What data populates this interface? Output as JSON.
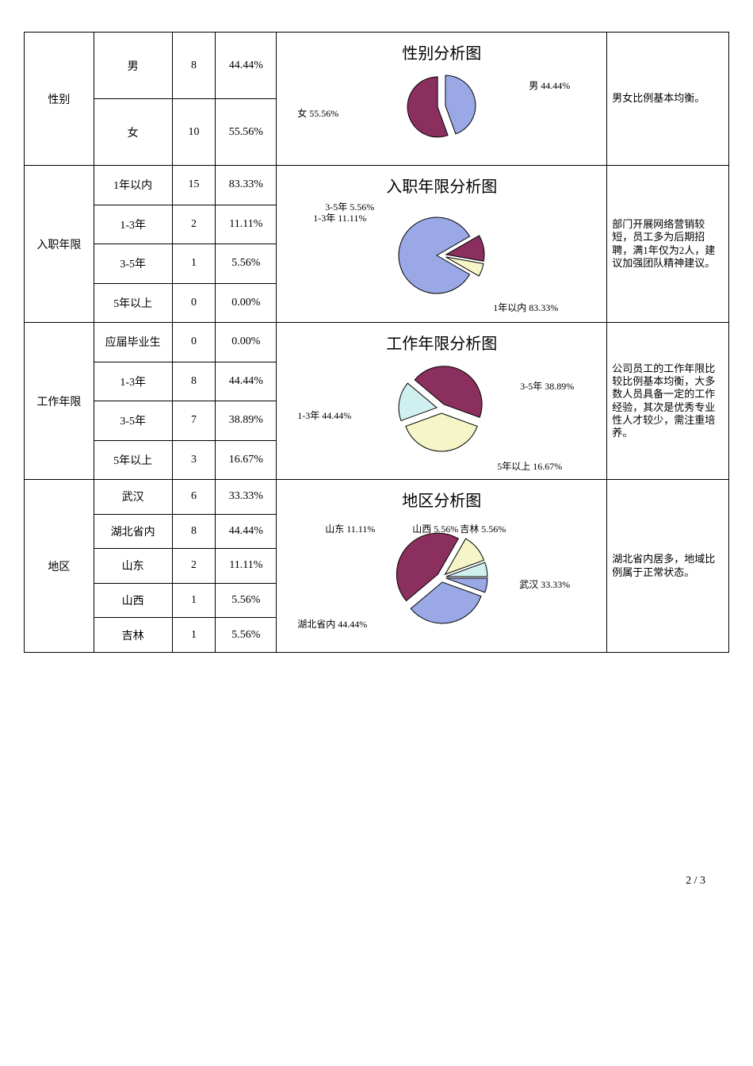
{
  "colors": {
    "purple": "#8b2f5f",
    "blue": "#9aa8e6",
    "cream": "#f5f5c8",
    "cyan": "#d0f0f0",
    "stroke": "#000000"
  },
  "sections": [
    {
      "category": "性别",
      "rows": [
        {
          "label": "男",
          "count": "8",
          "pct": "44.44%"
        },
        {
          "label": "女",
          "count": "10",
          "pct": "55.56%"
        }
      ],
      "chart_title": "性别分析图",
      "note": "男女比例基本均衡。",
      "pie": {
        "slices": [
          {
            "label": "男 44.44%",
            "value": 44.44,
            "color": "#9aa8e6"
          },
          {
            "label": "女 55.56%",
            "value": 55.56,
            "color": "#8b2f5f"
          }
        ]
      }
    },
    {
      "category": "入职年限",
      "rows": [
        {
          "label": "1年以内",
          "count": "15",
          "pct": "83.33%"
        },
        {
          "label": "1-3年",
          "count": "2",
          "pct": "11.11%"
        },
        {
          "label": "3-5年",
          "count": "1",
          "pct": "5.56%"
        },
        {
          "label": "5年以上",
          "count": "0",
          "pct": "0.00%"
        }
      ],
      "chart_title": "入职年限分析图",
      "note": "部门开展网络营销较短，员工多为后期招聘，满1年仅为2人，建议加强团队精神建议。",
      "pie": {
        "slices": [
          {
            "label": "1年以内 83.33%",
            "value": 83.33,
            "color": "#9aa8e6"
          },
          {
            "label": "1-3年 11.11%",
            "value": 11.11,
            "color": "#8b2f5f"
          },
          {
            "label": "3-5年 5.56%",
            "value": 5.56,
            "color": "#f5f5c8"
          }
        ]
      }
    },
    {
      "category": "工作年限",
      "rows": [
        {
          "label": "应届毕业生",
          "count": "0",
          "pct": "0.00%"
        },
        {
          "label": "1-3年",
          "count": "8",
          "pct": "44.44%"
        },
        {
          "label": "3-5年",
          "count": "7",
          "pct": "38.89%"
        },
        {
          "label": "5年以上",
          "count": "3",
          "pct": "16.67%"
        }
      ],
      "chart_title": "工作年限分析图",
      "note": "公司员工的工作年限比较比例基本均衡，大多数人员具备一定的工作经验，其次是优秀专业性人才较少，需注重培养。",
      "pie": {
        "slices": [
          {
            "label": "1-3年 44.44%",
            "value": 44.44,
            "color": "#8b2f5f"
          },
          {
            "label": "3-5年 38.89%",
            "value": 38.89,
            "color": "#f5f5c8"
          },
          {
            "label": "5年以上 16.67%",
            "value": 16.67,
            "color": "#d0f0f0"
          }
        ]
      }
    },
    {
      "category": "地区",
      "rows": [
        {
          "label": "武汉",
          "count": "6",
          "pct": "33.33%"
        },
        {
          "label": "湖北省内",
          "count": "8",
          "pct": "44.44%"
        },
        {
          "label": "山东",
          "count": "2",
          "pct": "11.11%"
        },
        {
          "label": "山西",
          "count": "1",
          "pct": "5.56%"
        },
        {
          "label": "吉林",
          "count": "1",
          "pct": "5.56%"
        }
      ],
      "chart_title": "地区分析图",
      "note": "湖北省内居多，地域比例属于正常状态。",
      "pie": {
        "slices": [
          {
            "label": "武汉 33.33%",
            "value": 33.33,
            "color": "#9aa8e6"
          },
          {
            "label": "湖北省内 44.44%",
            "value": 44.44,
            "color": "#8b2f5f"
          },
          {
            "label": "山东 11.11%",
            "value": 11.11,
            "color": "#f5f5c8"
          },
          {
            "label": "山西 5.56%",
            "value": 5.56,
            "color": "#d0f0f0"
          },
          {
            "label": "吉林 5.56%",
            "value": 5.56,
            "color": "#9aa8e6"
          }
        ]
      }
    }
  ],
  "footer": "2 / 3"
}
